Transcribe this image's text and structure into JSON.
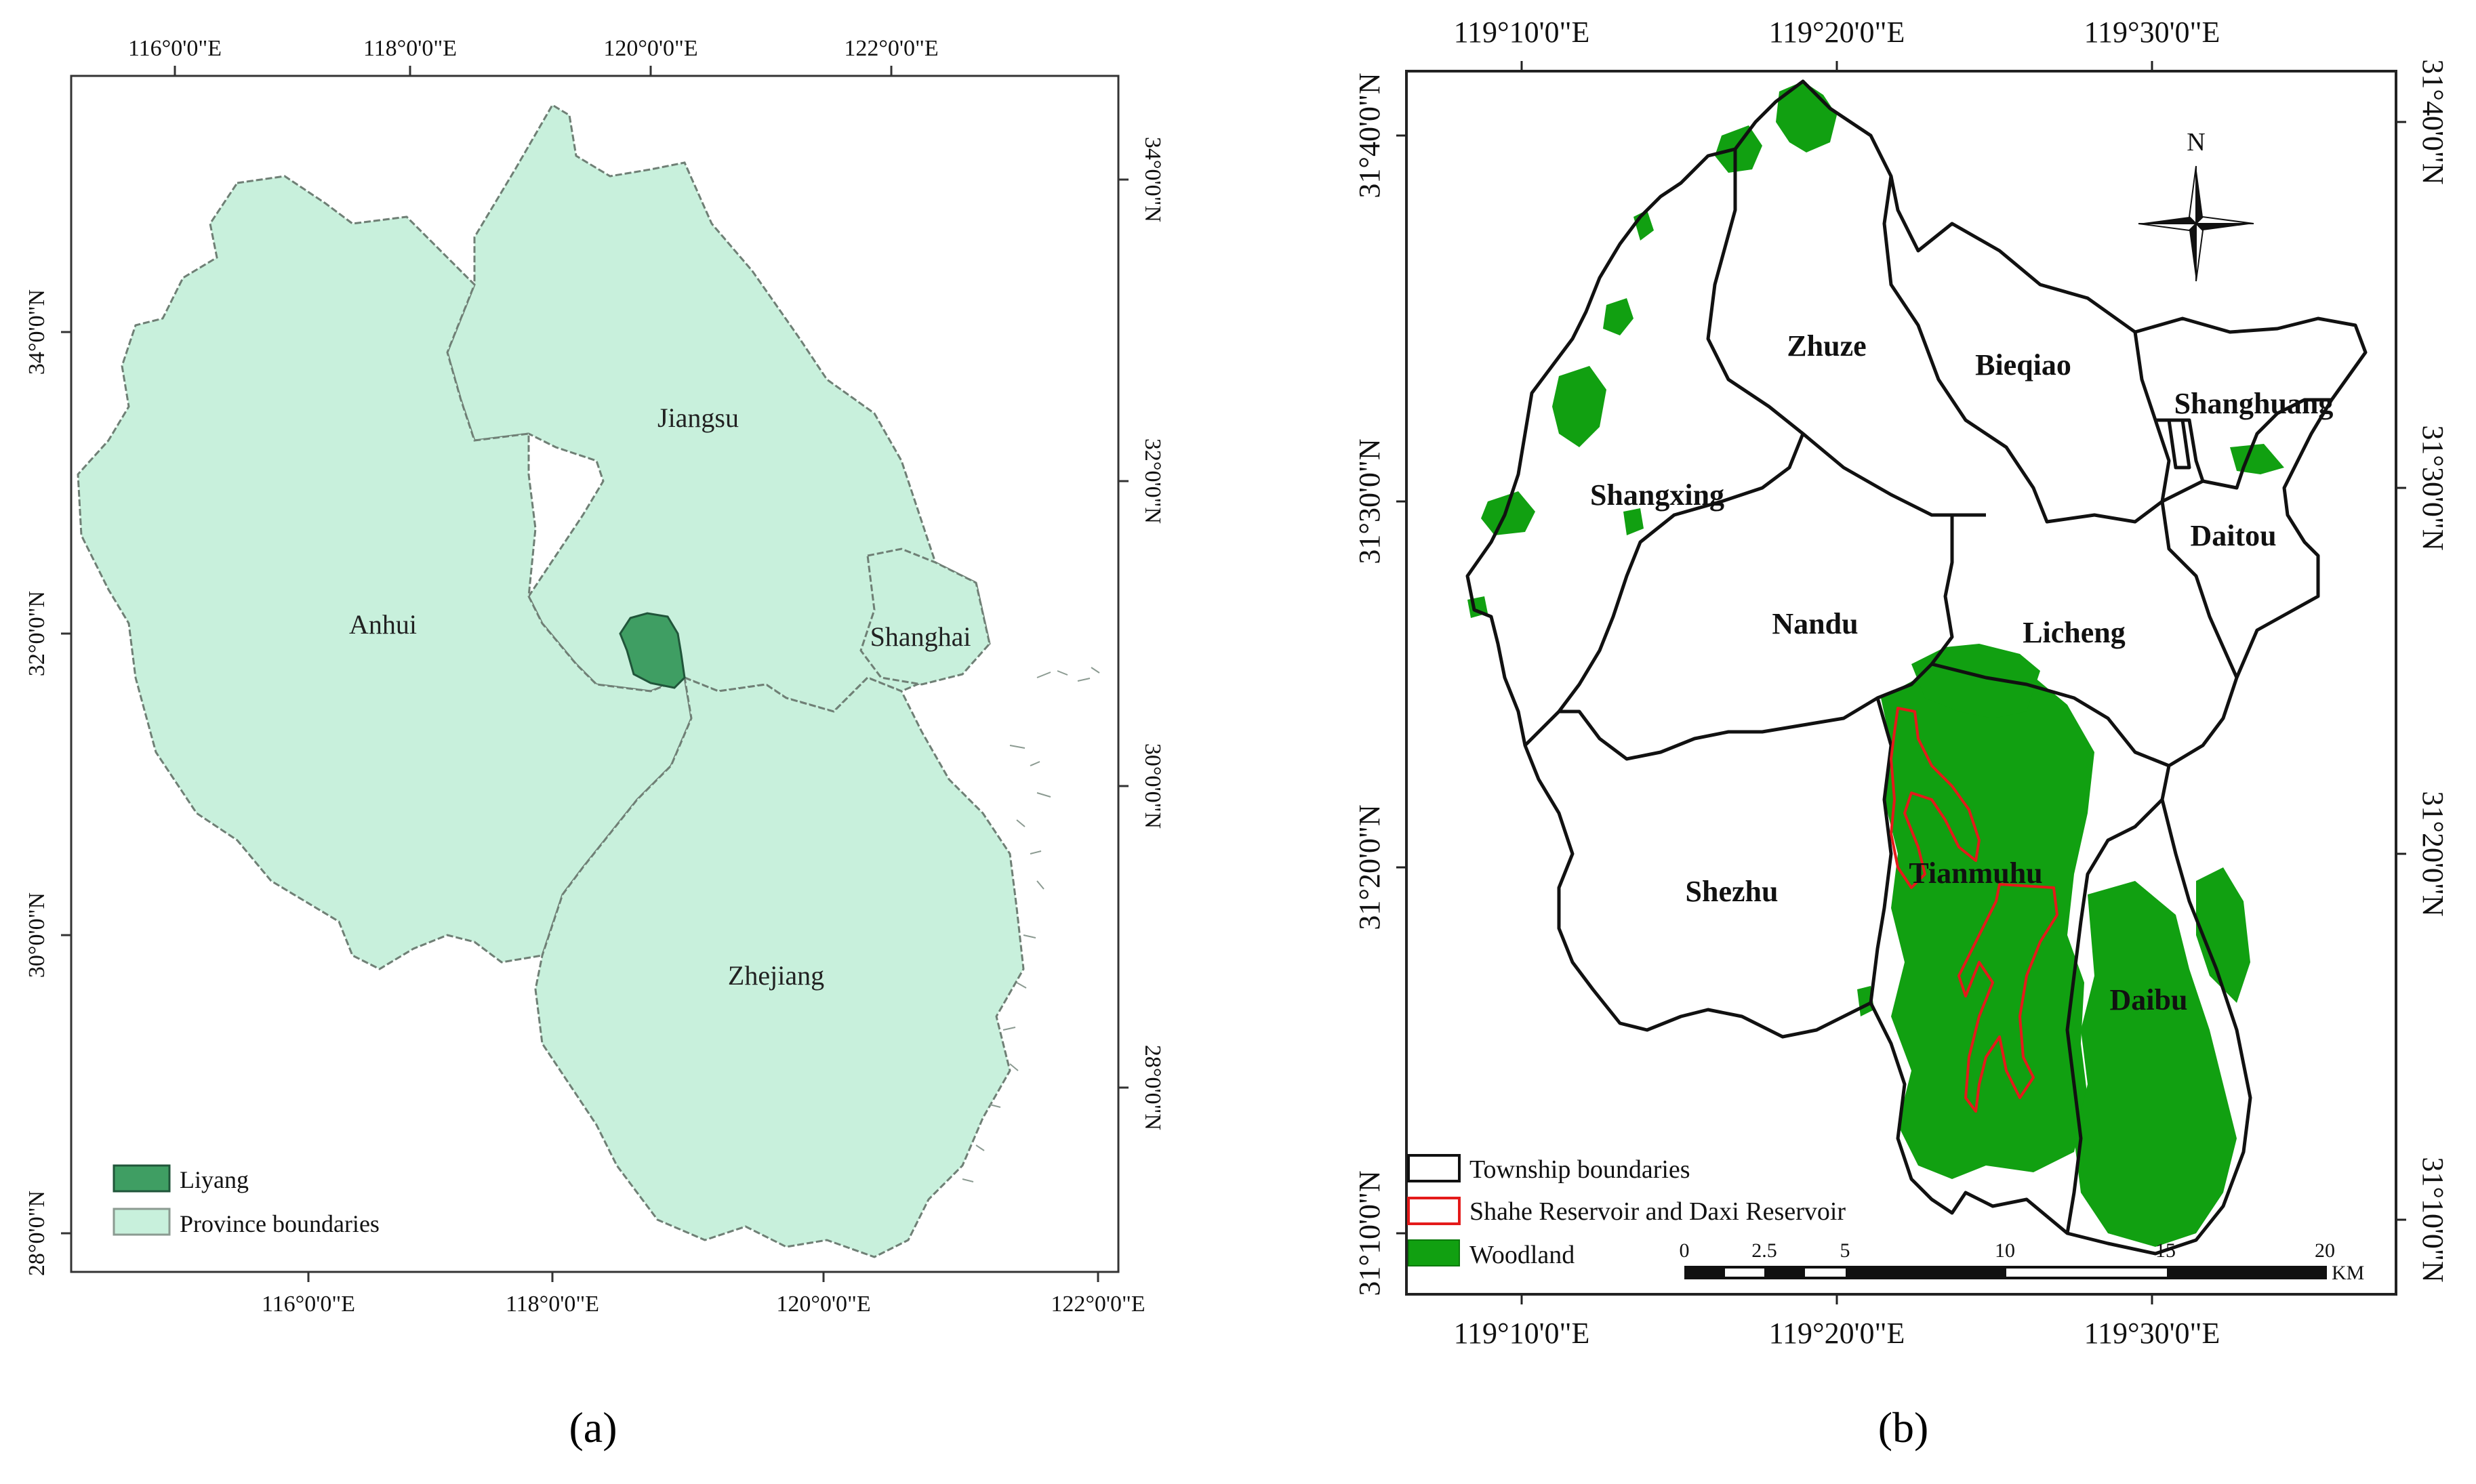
{
  "panel_a": {
    "caption": "(a)",
    "top_ticks": [
      "116°0'0\"E",
      "118°0'0\"E",
      "120°0'0\"E",
      "122°0'0\"E"
    ],
    "bottom_ticks": [
      "116°0'0\"E",
      "118°0'0\"E",
      "120°0'0\"E",
      "122°0'0\"E"
    ],
    "left_ticks": [
      "34°0'0\"N",
      "32°0'0\"N",
      "30°0'0\"N",
      "28°0'0\"N"
    ],
    "right_ticks": [
      "34°0'0\"N",
      "32°0'0\"N",
      "30°0'0\"N",
      "28°0'0\"N"
    ],
    "labels": {
      "jiangsu": "Jiangsu",
      "anhui": "Anhui",
      "shanghai": "Shanghai",
      "zhejiang": "Zhejiang"
    },
    "legend": {
      "liyang": "Liyang",
      "province": "Province boundaries"
    },
    "colors": {
      "province_fill": "#c8f0dc",
      "liyang_fill": "#3f9e63"
    }
  },
  "panel_b": {
    "caption": "(b)",
    "top_ticks": [
      "119°10'0\"E",
      "119°20'0\"E",
      "119°30'0\"E"
    ],
    "bottom_ticks": [
      "119°10'0\"E",
      "119°20'0\"E",
      "119°30'0\"E"
    ],
    "left_ticks": [
      "31°40'0\"N",
      "31°30'0\"N",
      "31°20'0\"N",
      "31°10'0\"N"
    ],
    "right_ticks": [
      "31°40'0\"N",
      "31°30'0\"N",
      "31°20'0\"N",
      "31°10'0\"N"
    ],
    "north": "N",
    "townships": {
      "zhuze": "Zhuze",
      "bieqiao": "Bieqiao",
      "shanghuang": "Shanghuang",
      "shangxing": "Shangxing",
      "daitou": "Daitou",
      "nandu": "Nandu",
      "licheng": "Licheng",
      "shezhu": "Shezhu",
      "tianmuhu": "Tianmuhu",
      "daibu": "Daibu"
    },
    "legend": {
      "township": "Township boundaries",
      "reservoir": "Shahe Reservoir and Daxi Reservoir",
      "woodland": "Woodland"
    },
    "scale": {
      "ticks": [
        "0",
        "2.5",
        "5",
        "10",
        "15",
        "20"
      ],
      "unit": "KM"
    },
    "colors": {
      "woodland": "#11a011",
      "reservoir": "#e41a1a",
      "boundary": "#111111"
    }
  }
}
